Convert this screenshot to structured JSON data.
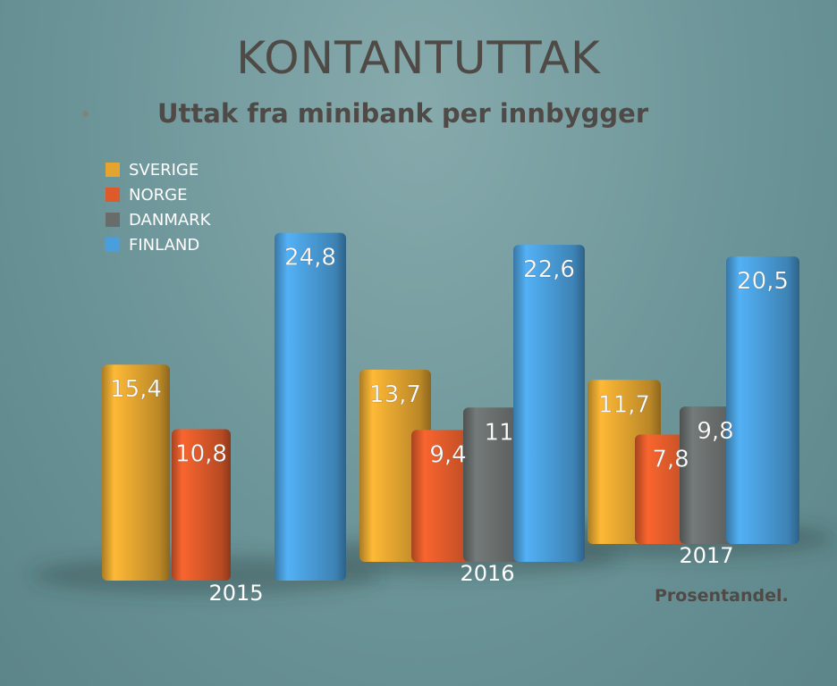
{
  "chart_data": {
    "type": "bar",
    "title": "KONTANTUTTAK",
    "subtitle": "Uttak fra minibank per innbygger",
    "note": "Prosentandel.",
    "categories": [
      "2015",
      "2016",
      "2017"
    ],
    "series": [
      {
        "name": "SVERIGE",
        "color": "#e3a530",
        "values": [
          15.4,
          13.7,
          11.7
        ],
        "labels": [
          "15,4",
          "13,7",
          "11,7"
        ]
      },
      {
        "name": "NORGE",
        "color": "#de5a2a",
        "values": [
          10.8,
          9.4,
          7.8
        ],
        "labels": [
          "10,8",
          "9,4",
          "7,8"
        ]
      },
      {
        "name": "DANMARK",
        "color": "#686d6c",
        "values": [
          null,
          11,
          9.8
        ],
        "labels": [
          "",
          "11",
          "9,8"
        ]
      },
      {
        "name": "FINLAND",
        "color": "#4a9edb",
        "values": [
          24.8,
          22.6,
          20.5
        ],
        "labels": [
          "24,8",
          "22,6",
          "20,5"
        ]
      }
    ],
    "legend_position": "top-left",
    "grid": false
  }
}
